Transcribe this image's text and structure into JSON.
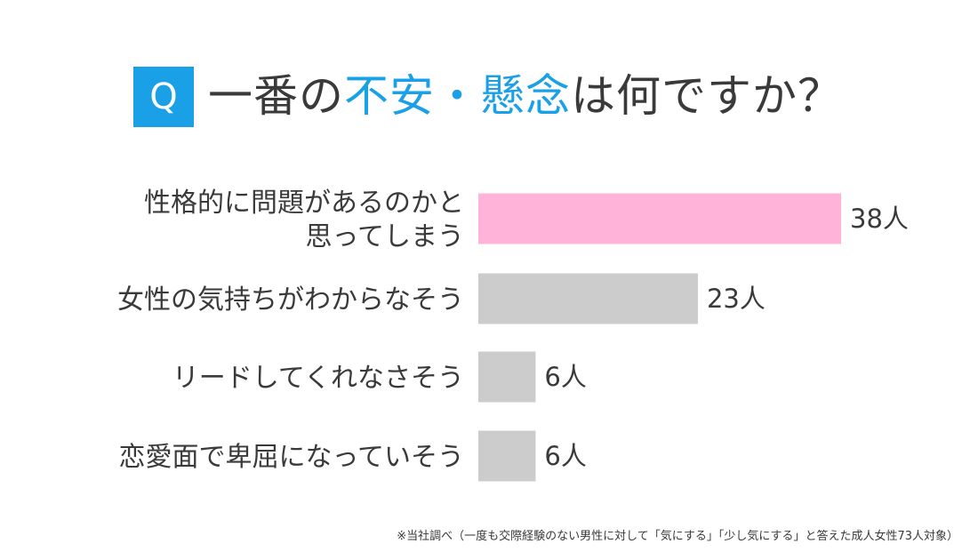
{
  "header": {
    "badge": "Q",
    "title_part1": "一番の",
    "title_accent": "不安・懸念",
    "title_part2": "は何ですか？"
  },
  "colors": {
    "accent": "#1aa0e6",
    "highlight_bar": "#ffb3d9",
    "default_bar": "#cccccc",
    "text": "#3a3a3a"
  },
  "chart_data": {
    "type": "bar",
    "orientation": "horizontal",
    "categories": [
      [
        "性格的に問題があるのかと",
        "思ってしまう"
      ],
      [
        "女性の気持ちがわからなそう"
      ],
      [
        "リードしてくれなさそう"
      ],
      [
        "恋愛面で卑屈になっていそう"
      ]
    ],
    "values": [
      38,
      23,
      6,
      6
    ],
    "value_labels": [
      "38人",
      "23人",
      "6人",
      "6人"
    ],
    "highlight_index": 0,
    "xlim": [
      0,
      38
    ],
    "grid": false,
    "legend": "none"
  },
  "footnote": "※当社調べ（一度も交際経験のない男性に対して「気にする」「少し気にする」と答えた成人女性73人対象）"
}
